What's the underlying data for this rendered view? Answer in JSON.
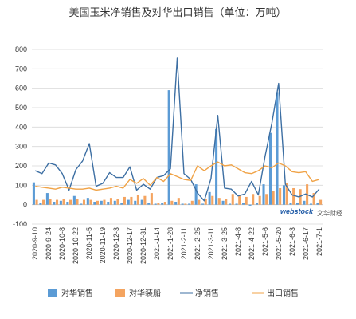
{
  "chart_data": {
    "type": "bar",
    "title": "美国玉米净销售及对华出口销售（单位：万吨）",
    "ylim": [
      -100,
      800
    ],
    "yticks": [
      -100,
      0,
      100,
      200,
      300,
      400,
      500,
      600,
      700,
      800
    ],
    "grid": true,
    "legend_position": "bottom",
    "x": [
      "2020-9-10",
      "2020-9-17",
      "2020-9-24",
      "2020-10-1",
      "2020-10-8",
      "2020-10-15",
      "2020-10-22",
      "2020-10-29",
      "2020-11-5",
      "2020-11-12",
      "2020-11-19",
      "2020-11-26",
      "2020-12-3",
      "2020-12-10",
      "2020-12-17",
      "2020-12-24",
      "2020-12-31",
      "2021-1-7",
      "2021-1-14",
      "2021-1-21",
      "2021-1-28",
      "2021-2-4",
      "2021-2-11",
      "2021-2-18",
      "2021-2-25",
      "2021-3-4",
      "2021-3-11",
      "2021-3-18",
      "2021-3-25",
      "2021-4-1",
      "2021-4-8",
      "2021-4-15",
      "2021-4-22",
      "2021-4-29",
      "2021-5-6",
      "2021-5-13",
      "2021-5-20",
      "2021-5-27",
      "2021-6-3",
      "2021-6-10",
      "2021-6-17",
      "2021-6-24",
      "2021-7-1"
    ],
    "x_tick_labels": [
      "2020-9-10",
      "2020-9-24",
      "2020-10-8",
      "2020-10-22",
      "2020-11-5",
      "2020-11-19",
      "2020-12-3",
      "2020-12-17",
      "2020-12-31",
      "2021-1-14",
      "2021-1-28",
      "2021-2-11",
      "2021-2-25",
      "2021-3-11",
      "2021-3-25",
      "2021-4-8",
      "2021-4-22",
      "2021-5-6",
      "2021-5-20",
      "2021-6-3",
      "2021-6-17",
      "2021-7-1"
    ],
    "series": [
      {
        "name": "对华销售",
        "kind": "bar",
        "color": "#5b9bd5",
        "values": [
          115,
          10,
          60,
          15,
          20,
          15,
          45,
          5,
          35,
          15,
          20,
          15,
          20,
          10,
          25,
          20,
          25,
          10,
          5,
          10,
          590,
          15,
          5,
          5,
          105,
          5,
          65,
          390,
          20,
          5,
          5,
          10,
          -5,
          10,
          105,
          370,
          580,
          100,
          10,
          10,
          20,
          5,
          10
        ]
      },
      {
        "name": "对华装船",
        "kind": "bar",
        "color": "#f4a460",
        "values": [
          25,
          25,
          30,
          25,
          30,
          25,
          30,
          25,
          25,
          20,
          25,
          35,
          30,
          40,
          40,
          50,
          45,
          60,
          10,
          15,
          20,
          35,
          5,
          20,
          25,
          30,
          45,
          35,
          30,
          55,
          50,
          40,
          55,
          45,
          55,
          70,
          85,
          110,
          85,
          80,
          105,
          60,
          25
        ]
      },
      {
        "name": "净销售",
        "kind": "line",
        "color": "#3d6fa3",
        "values": [
          175,
          160,
          215,
          205,
          160,
          75,
          180,
          225,
          315,
          95,
          110,
          165,
          140,
          140,
          195,
          75,
          105,
          80,
          140,
          150,
          185,
          755,
          160,
          130,
          60,
          20,
          135,
          460,
          85,
          80,
          45,
          55,
          120,
          50,
          250,
          420,
          625,
          105,
          50,
          40,
          55,
          40,
          80
        ]
      },
      {
        "name": "出口销售",
        "kind": "line",
        "color": "#f0a347",
        "values": [
          95,
          90,
          85,
          80,
          90,
          85,
          80,
          80,
          85,
          75,
          80,
          85,
          95,
          85,
          130,
          110,
          135,
          100,
          140,
          120,
          160,
          145,
          130,
          125,
          200,
          175,
          200,
          220,
          200,
          205,
          185,
          165,
          160,
          175,
          200,
          190,
          215,
          200,
          170,
          165,
          170,
          120,
          130
        ]
      }
    ]
  },
  "watermark": {
    "brand": "webstock",
    "subtitle": "文华财经"
  }
}
